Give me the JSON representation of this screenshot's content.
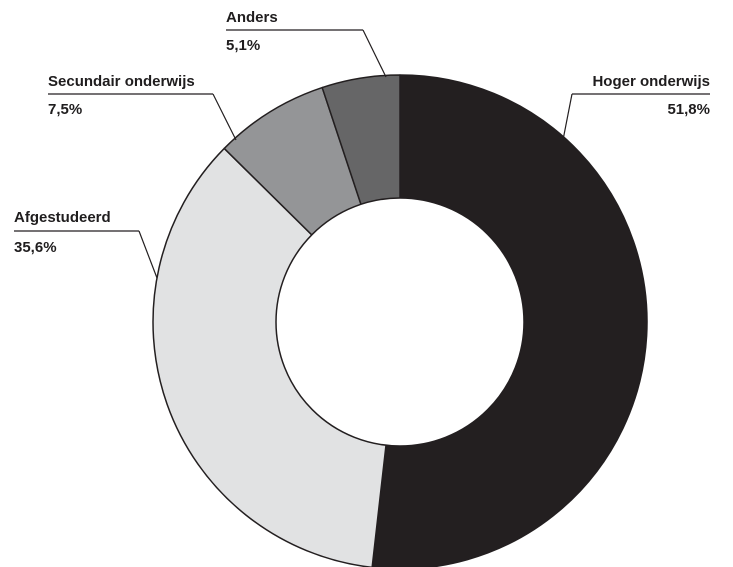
{
  "chart_data": {
    "type": "pie",
    "variant": "donut",
    "title": "",
    "slices": [
      {
        "label": "Hoger onderwijs",
        "value": 51.8,
        "display": "51,8%",
        "color": "#231f20"
      },
      {
        "label": "Afgestudeerd",
        "value": 35.6,
        "display": "35,6%",
        "color": "#e1e2e3"
      },
      {
        "label": "Secundair onderwijs",
        "value": 7.5,
        "display": "7,5%",
        "color": "#949597"
      },
      {
        "label": "Anders",
        "value": 5.1,
        "display": "5,1%",
        "color": "#666667"
      }
    ],
    "legend": "none",
    "labels": "outside with leader lines"
  }
}
